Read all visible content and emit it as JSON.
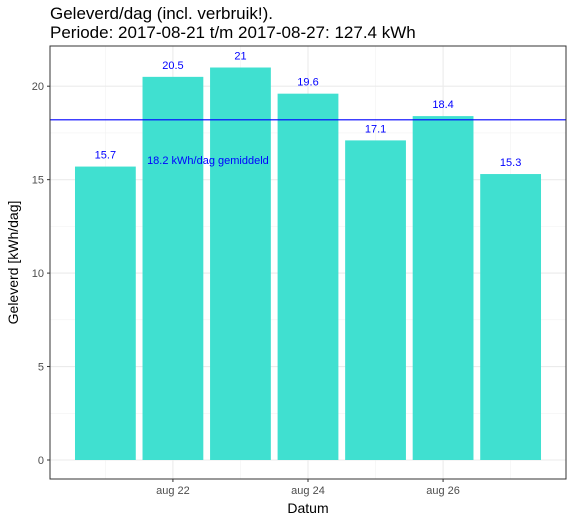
{
  "title": "Geleverd/dag (incl. verbruik!).",
  "subtitle": "Periode: 2017-08-21 t/m 2017-08-27: 127.4 kWh",
  "chart_data": {
    "type": "bar",
    "title": "Geleverd/dag (incl. verbruik!).",
    "subtitle": "Periode: 2017-08-21 t/m 2017-08-27: 127.4 kWh",
    "xlabel": "Datum",
    "ylabel": "Geleverd [kWh/dag]",
    "categories": [
      "2017-08-21",
      "2017-08-22",
      "2017-08-23",
      "2017-08-24",
      "2017-08-25",
      "2017-08-26",
      "2017-08-27"
    ],
    "values": [
      15.7,
      20.5,
      21,
      19.6,
      17.1,
      18.4,
      15.3
    ],
    "data_labels": [
      "15.7",
      "20.5",
      "21",
      "19.6",
      "17.1",
      "18.4",
      "15.3"
    ],
    "x_tick_labels": [
      {
        "date": "2017-08-22",
        "label": "aug 22"
      },
      {
        "date": "2017-08-24",
        "label": "aug 24"
      },
      {
        "date": "2017-08-26",
        "label": "aug 26"
      }
    ],
    "y_ticks": [
      0,
      5,
      10,
      15,
      20
    ],
    "ylim": [
      0,
      22
    ],
    "grid": true,
    "reference_line": {
      "value": 18.2,
      "label": "18.2 kWh/dag gemiddeld",
      "color": "#0000ff"
    },
    "bar_color": "#40e0d0",
    "label_color": "#0000ff"
  }
}
